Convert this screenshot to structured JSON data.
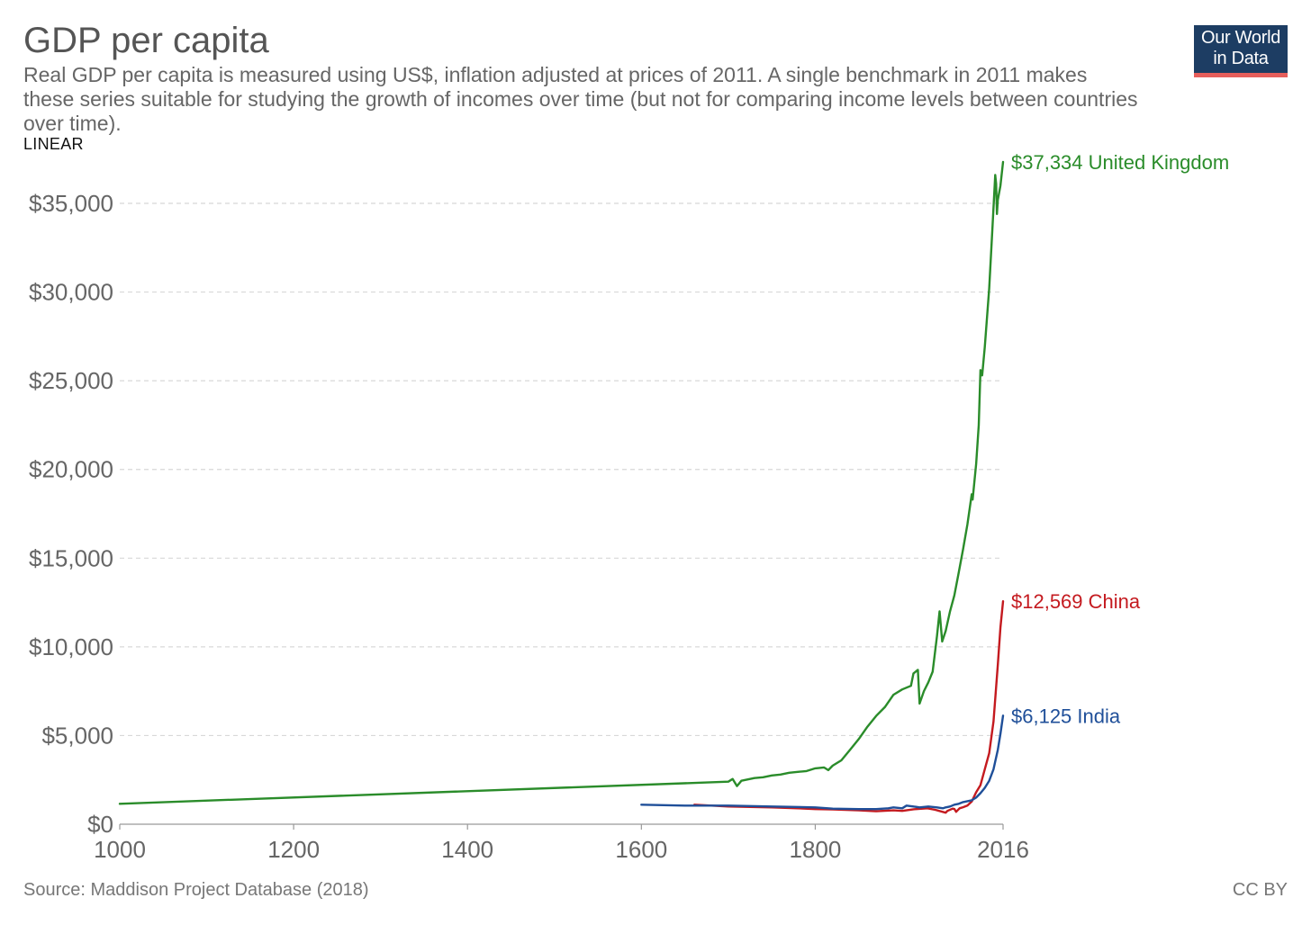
{
  "header": {
    "title": "GDP per capita",
    "subtitle": "Real GDP per capita is measured using US$, inflation adjusted at prices of 2011. A single benchmark in 2011 makes these series suitable for studying the growth of incomes over time (but not for comparing income levels between countries over time).",
    "scale_label": "LINEAR",
    "logo_line1": "Our World",
    "logo_line2": "in Data"
  },
  "footer": {
    "source": "Source: Maddison Project Database (2018)",
    "license": "CC BY"
  },
  "colors": {
    "uk": "#2a8c2a",
    "china": "#c41a1f",
    "india": "#1f4f99",
    "grid": "#d8d8d8",
    "axis_text": "#666666",
    "logo_bg": "#1d3d63",
    "logo_accent": "#e65e5b"
  },
  "chart_data": {
    "type": "line",
    "title": "GDP per capita",
    "xlabel": "",
    "ylabel": "",
    "xlim": [
      1000,
      2016
    ],
    "ylim": [
      0,
      37334
    ],
    "grid": true,
    "x_ticks": [
      "1000",
      "1200",
      "1400",
      "1600",
      "1800",
      "2016"
    ],
    "x_tick_values": [
      1000,
      1200,
      1400,
      1600,
      1800,
      2016
    ],
    "y_ticks": [
      "$0",
      "$5,000",
      "$10,000",
      "$15,000",
      "$20,000",
      "$25,000",
      "$30,000",
      "$35,000"
    ],
    "y_tick_values": [
      0,
      5000,
      10000,
      15000,
      20000,
      25000,
      30000,
      35000
    ],
    "series": [
      {
        "name": "United Kingdom",
        "end_label": "$37,334 United Kingdom",
        "color": "#2a8c2a",
        "points": [
          [
            1000,
            1150
          ],
          [
            1700,
            2400
          ],
          [
            1705,
            2550
          ],
          [
            1710,
            2150
          ],
          [
            1715,
            2450
          ],
          [
            1720,
            2500
          ],
          [
            1730,
            2600
          ],
          [
            1740,
            2650
          ],
          [
            1750,
            2750
          ],
          [
            1760,
            2800
          ],
          [
            1770,
            2900
          ],
          [
            1780,
            2950
          ],
          [
            1790,
            3000
          ],
          [
            1800,
            3150
          ],
          [
            1810,
            3200
          ],
          [
            1815,
            3050
          ],
          [
            1820,
            3300
          ],
          [
            1830,
            3600
          ],
          [
            1840,
            4200
          ],
          [
            1850,
            4800
          ],
          [
            1860,
            5500
          ],
          [
            1870,
            6100
          ],
          [
            1880,
            6600
          ],
          [
            1890,
            7300
          ],
          [
            1900,
            7600
          ],
          [
            1910,
            7800
          ],
          [
            1913,
            8500
          ],
          [
            1918,
            8700
          ],
          [
            1920,
            6800
          ],
          [
            1925,
            7500
          ],
          [
            1930,
            8000
          ],
          [
            1935,
            8600
          ],
          [
            1940,
            10600
          ],
          [
            1943,
            12000
          ],
          [
            1946,
            10300
          ],
          [
            1950,
            10900
          ],
          [
            1955,
            12000
          ],
          [
            1960,
            12900
          ],
          [
            1965,
            14200
          ],
          [
            1970,
            15500
          ],
          [
            1975,
            16900
          ],
          [
            1980,
            18600
          ],
          [
            1981,
            18300
          ],
          [
            1985,
            20300
          ],
          [
            1988,
            22500
          ],
          [
            1990,
            25600
          ],
          [
            1992,
            25300
          ],
          [
            1995,
            26900
          ],
          [
            2000,
            30200
          ],
          [
            2004,
            33800
          ],
          [
            2007,
            36600
          ],
          [
            2008,
            36100
          ],
          [
            2009,
            34400
          ],
          [
            2010,
            35200
          ],
          [
            2013,
            36000
          ],
          [
            2016,
            37334
          ]
        ]
      },
      {
        "name": "China",
        "end_label": "$12,569 China",
        "color": "#c41a1f",
        "points": [
          [
            1661,
            1100
          ],
          [
            1700,
            1000
          ],
          [
            1750,
            950
          ],
          [
            1780,
            900
          ],
          [
            1800,
            850
          ],
          [
            1820,
            830
          ],
          [
            1850,
            780
          ],
          [
            1870,
            730
          ],
          [
            1890,
            780
          ],
          [
            1900,
            750
          ],
          [
            1913,
            840
          ],
          [
            1929,
            900
          ],
          [
            1938,
            810
          ],
          [
            1950,
            650
          ],
          [
            1952,
            750
          ],
          [
            1958,
            880
          ],
          [
            1960,
            860
          ],
          [
            1962,
            700
          ],
          [
            1966,
            900
          ],
          [
            1970,
            960
          ],
          [
            1975,
            1050
          ],
          [
            1980,
            1280
          ],
          [
            1985,
            1800
          ],
          [
            1990,
            2200
          ],
          [
            1995,
            3100
          ],
          [
            2000,
            4000
          ],
          [
            2005,
            5800
          ],
          [
            2010,
            9000
          ],
          [
            2013,
            11100
          ],
          [
            2016,
            12569
          ]
        ]
      },
      {
        "name": "India",
        "end_label": "$6,125 India",
        "color": "#1f4f99",
        "points": [
          [
            1600,
            1100
          ],
          [
            1650,
            1050
          ],
          [
            1700,
            1050
          ],
          [
            1750,
            1000
          ],
          [
            1800,
            950
          ],
          [
            1820,
            880
          ],
          [
            1850,
            850
          ],
          [
            1870,
            850
          ],
          [
            1884,
            900
          ],
          [
            1890,
            950
          ],
          [
            1900,
            900
          ],
          [
            1905,
            1050
          ],
          [
            1913,
            1000
          ],
          [
            1920,
            950
          ],
          [
            1930,
            1000
          ],
          [
            1940,
            950
          ],
          [
            1947,
            900
          ],
          [
            1950,
            950
          ],
          [
            1955,
            1000
          ],
          [
            1960,
            1100
          ],
          [
            1965,
            1150
          ],
          [
            1970,
            1250
          ],
          [
            1975,
            1300
          ],
          [
            1980,
            1350
          ],
          [
            1985,
            1500
          ],
          [
            1990,
            1750
          ],
          [
            1995,
            2050
          ],
          [
            2000,
            2450
          ],
          [
            2005,
            3100
          ],
          [
            2010,
            4200
          ],
          [
            2013,
            5100
          ],
          [
            2016,
            6125
          ]
        ]
      }
    ]
  }
}
